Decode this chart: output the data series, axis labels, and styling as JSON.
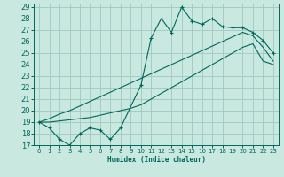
{
  "bg_color": "#c8e8e0",
  "grid_color": "#a0c8c0",
  "line_color": "#006858",
  "xlabel": "Humidex (Indice chaleur)",
  "xlim": [
    -0.5,
    23.5
  ],
  "ylim": [
    17,
    29.3
  ],
  "yticks": [
    17,
    18,
    19,
    20,
    21,
    22,
    23,
    24,
    25,
    26,
    27,
    28,
    29
  ],
  "xticks": [
    0,
    1,
    2,
    3,
    4,
    5,
    6,
    7,
    8,
    9,
    10,
    11,
    12,
    13,
    14,
    15,
    16,
    17,
    18,
    19,
    20,
    21,
    22,
    23
  ],
  "line1_x": [
    0,
    1,
    2,
    3,
    4,
    5,
    6,
    7,
    8,
    10,
    11,
    12,
    13,
    14,
    15,
    16,
    17,
    18,
    19,
    20,
    21,
    22,
    23
  ],
  "line1_y": [
    19.0,
    18.5,
    17.5,
    17.0,
    18.0,
    18.5,
    18.3,
    17.5,
    18.5,
    22.2,
    26.3,
    28.0,
    26.8,
    29.0,
    27.8,
    27.5,
    28.0,
    27.3,
    27.2,
    27.2,
    26.8,
    26.1,
    25.0
  ],
  "line2_x": [
    0,
    1,
    2,
    3,
    4,
    5,
    6,
    7,
    8,
    9,
    10,
    11,
    12,
    13,
    14,
    15,
    16,
    17,
    18,
    19,
    20,
    21,
    22,
    23
  ],
  "line2_y": [
    19.0,
    19.0,
    19.1,
    19.2,
    19.3,
    19.4,
    19.6,
    19.8,
    20.0,
    20.2,
    20.5,
    21.0,
    21.5,
    22.0,
    22.5,
    23.0,
    23.5,
    24.0,
    24.5,
    25.0,
    25.5,
    25.8,
    24.3,
    24.0
  ],
  "line3_x": [
    0,
    1,
    2,
    3,
    4,
    5,
    6,
    7,
    8,
    9,
    10,
    11,
    12,
    13,
    14,
    15,
    16,
    17,
    18,
    19,
    20,
    21,
    22,
    23
  ],
  "line3_y": [
    19.0,
    19.3,
    19.7,
    20.0,
    20.4,
    20.8,
    21.2,
    21.6,
    22.0,
    22.4,
    22.8,
    23.2,
    23.6,
    24.0,
    24.4,
    24.8,
    25.2,
    25.6,
    26.0,
    26.4,
    26.8,
    26.5,
    25.5,
    24.3
  ]
}
